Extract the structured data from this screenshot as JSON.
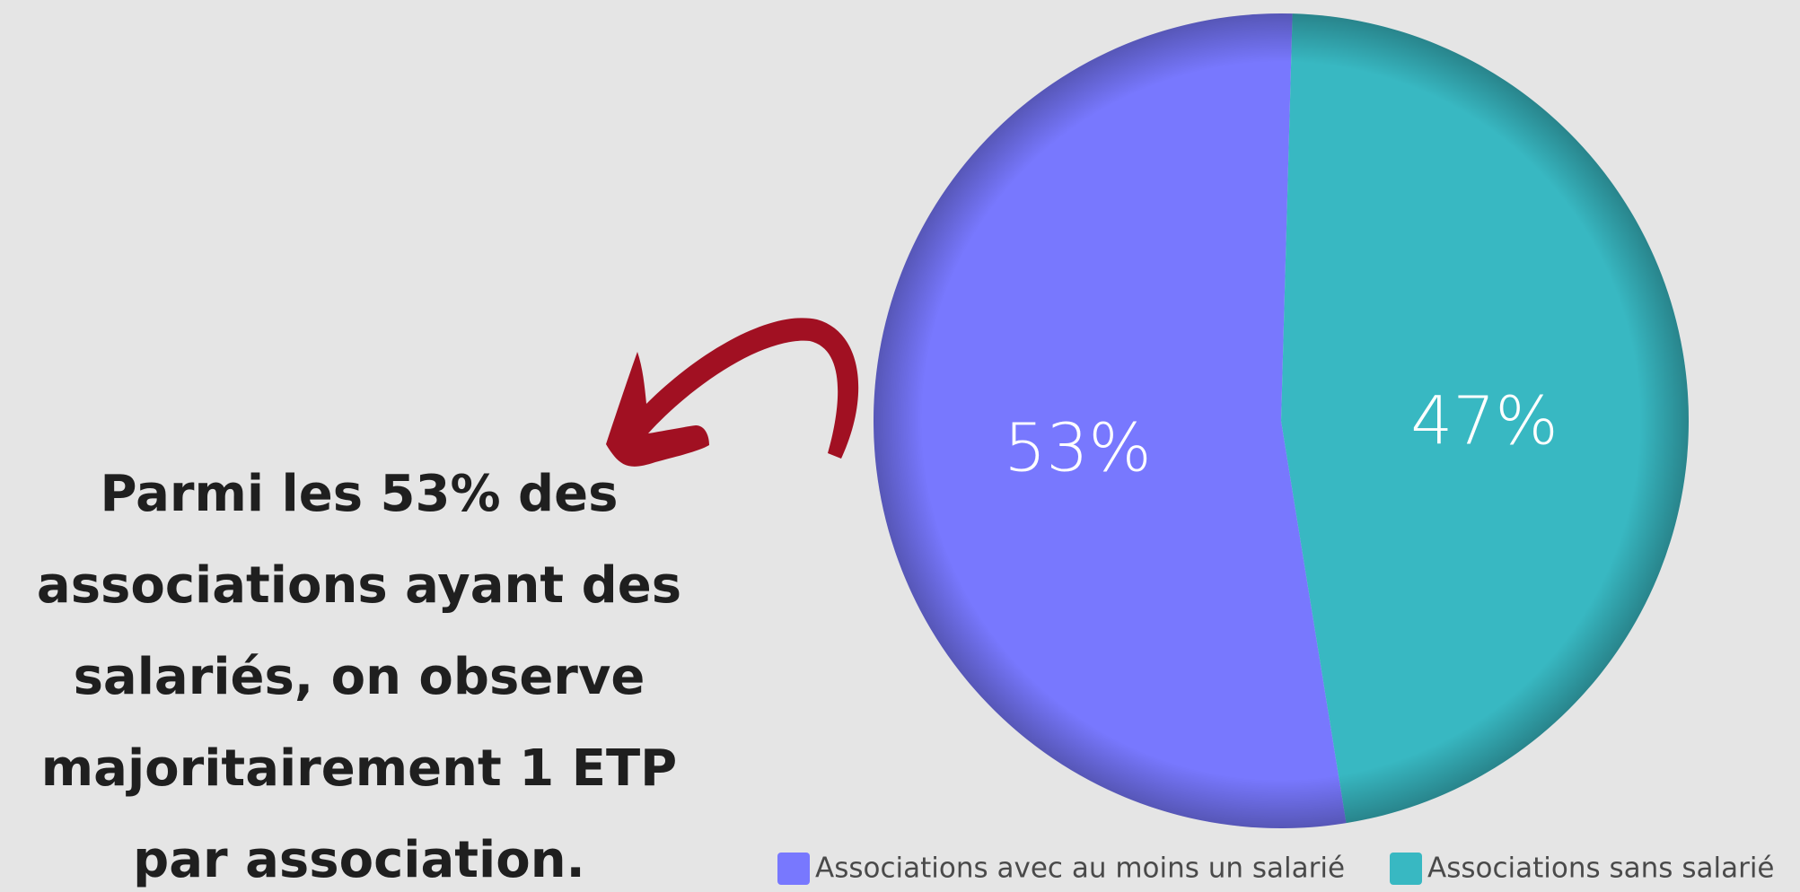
{
  "chart_data": {
    "type": "pie",
    "annotation": [
      "Parmi les 53% des",
      "associations ayant des",
      "salariés, on observe",
      "majoritairement 1 ETP",
      "par association."
    ],
    "series": [
      {
        "name": "Associations avec au moins un salarié",
        "color": "#7878fe",
        "values": [
          53
        ],
        "value_labels": [
          "53%"
        ]
      },
      {
        "name": "Associations sans salarié",
        "color": "#38b8c2",
        "values": [
          47
        ],
        "value_labels": [
          "47%"
        ]
      }
    ],
    "legend": "bottom"
  }
}
